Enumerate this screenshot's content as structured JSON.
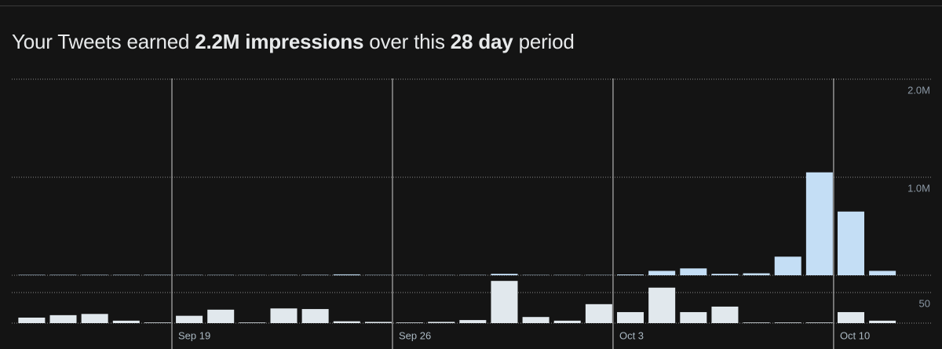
{
  "chart_data": {
    "type": "bar",
    "title_parts": [
      {
        "text": "Your Tweets earned ",
        "bold": false
      },
      {
        "text": "2.2M",
        "bold": true
      },
      {
        "text": " impressions",
        "bold": true
      },
      {
        "text": " over this ",
        "bold": false
      },
      {
        "text": "28 day",
        "bold": true
      },
      {
        "text": " period",
        "bold": false
      }
    ],
    "categories": [
      null,
      null,
      null,
      null,
      null,
      "Sep 19",
      null,
      null,
      null,
      null,
      null,
      null,
      "Sep 26",
      null,
      null,
      null,
      null,
      null,
      null,
      "Oct 3",
      null,
      null,
      null,
      null,
      null,
      null,
      "Oct 10",
      null
    ],
    "series": [
      {
        "color": "#c4def5",
        "axis": "y",
        "values": [
          4000,
          4000,
          4000,
          4000,
          4000,
          3000,
          3000,
          2000,
          3000,
          4000,
          9000,
          3000,
          2000,
          2000,
          3000,
          15000,
          3000,
          3000,
          3000,
          8000,
          45000,
          70000,
          15000,
          20000,
          190000,
          1050000,
          650000,
          45000
        ]
      },
      {
        "color": "#e1e8ed",
        "axis": "y2",
        "values": [
          9,
          13,
          15,
          4,
          1,
          12,
          22,
          1,
          24,
          23,
          3,
          2,
          1,
          2,
          5,
          69,
          10,
          4,
          31,
          18,
          58,
          18,
          27,
          1,
          1,
          1,
          18,
          4
        ]
      }
    ],
    "ylim": [
      0,
      2000000
    ],
    "yticks": [
      {
        "value": 1000000,
        "label": "1.0M"
      },
      {
        "value": 2000000,
        "label": "2.0M"
      }
    ],
    "y2lim": [
      0,
      70
    ],
    "y2ticks": [
      50
    ],
    "grid": true
  }
}
